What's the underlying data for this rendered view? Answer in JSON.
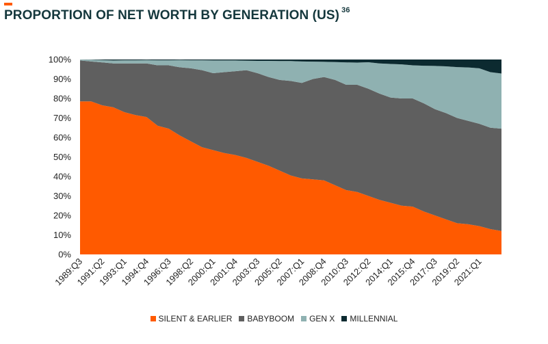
{
  "title": "PROPORTION OF NET WORTH BY GENERATION (US)",
  "footnote": "36",
  "colors": {
    "accent": "#ff5a00",
    "title": "#14373c"
  },
  "chart_data": {
    "type": "area",
    "stacked": true,
    "title": "PROPORTION OF NET WORTH BY GENERATION (US)",
    "xlabel": "",
    "ylabel": "",
    "ylim": [
      0,
      100
    ],
    "y_ticks": [
      0,
      10,
      20,
      30,
      40,
      50,
      60,
      70,
      80,
      90,
      100
    ],
    "y_tick_labels": [
      "0%",
      "10%",
      "20%",
      "30%",
      "40%",
      "50%",
      "60%",
      "70%",
      "80%",
      "90%",
      "100%"
    ],
    "x_tick_labels": [
      "1989:Q3",
      "1991:Q2",
      "1993:Q1",
      "1994:Q4",
      "1996:Q3",
      "1998:Q2",
      "2000:Q1",
      "2001:Q4",
      "2003:Q3",
      "2005:Q2",
      "2007:Q1",
      "2008:Q4",
      "2010:Q3",
      "2012:Q2",
      "2014:Q1",
      "2015:Q4",
      "2017:Q3",
      "2019:Q2",
      "2021:Q1"
    ],
    "legend_position": "bottom",
    "grid": false,
    "x": [
      "1989:Q3",
      "1990:Q3",
      "1991:Q2",
      "1992:Q2",
      "1993:Q1",
      "1994:Q1",
      "1994:Q4",
      "1995:Q4",
      "1996:Q3",
      "1997:Q3",
      "1998:Q2",
      "1999:Q2",
      "2000:Q1",
      "2001:Q1",
      "2001:Q4",
      "2002:Q4",
      "2003:Q3",
      "2004:Q3",
      "2005:Q2",
      "2006:Q2",
      "2007:Q1",
      "2008:Q1",
      "2008:Q4",
      "2009:Q4",
      "2010:Q3",
      "2011:Q3",
      "2012:Q2",
      "2013:Q2",
      "2014:Q1",
      "2015:Q1",
      "2015:Q4",
      "2016:Q4",
      "2017:Q3",
      "2018:Q3",
      "2019:Q2",
      "2020:Q2",
      "2021:Q1",
      "2022:Q1",
      "2022:Q3"
    ],
    "series": [
      {
        "name": "SILENT & EARLIER",
        "color": "#ff5a00",
        "values": [
          78.5,
          78.5,
          76.5,
          75.5,
          73,
          71.5,
          70.5,
          66,
          64.5,
          61,
          58,
          55,
          53.5,
          52,
          51,
          49.5,
          47.5,
          45.5,
          43,
          40.5,
          39,
          38.5,
          38,
          35.5,
          33,
          32,
          30,
          28,
          26.5,
          25,
          24.5,
          22,
          20,
          18,
          16,
          15.5,
          14.5,
          13,
          12
        ]
      },
      {
        "name": "BABYBOOM",
        "color": "#5f5f5f",
        "values": [
          21,
          20.5,
          22,
          22.5,
          25,
          26.5,
          27.5,
          31,
          32.5,
          35,
          37.5,
          39.5,
          39.5,
          41.5,
          43,
          45,
          45.5,
          45.5,
          46.5,
          48.5,
          49,
          51.5,
          53,
          54,
          54,
          55,
          55,
          54.5,
          54,
          55,
          55.5,
          55.5,
          54.5,
          54.5,
          54,
          53,
          52.5,
          52,
          52.5
        ]
      },
      {
        "name": "GEN X",
        "color": "#8fb1b1",
        "values": [
          0.5,
          0.9,
          1.2,
          1.5,
          1.6,
          1.6,
          1.7,
          2.6,
          2.6,
          3.7,
          4.1,
          5.1,
          6.5,
          6.0,
          5.5,
          4.9,
          6.3,
          8.3,
          9.7,
          10.2,
          11.0,
          8.9,
          7.8,
          9.2,
          11.5,
          11.4,
          13.6,
          15.5,
          17.2,
          17.5,
          17.0,
          19.3,
          22.2,
          24.0,
          26.1,
          27.4,
          28.5,
          28.5,
          28.3
        ]
      },
      {
        "name": "MILLENNIAL",
        "color": "#0c2a30",
        "values": [
          0,
          0.1,
          0.3,
          0.5,
          0.4,
          0.4,
          0.3,
          0.4,
          0.4,
          0.3,
          0.4,
          0.4,
          0.5,
          0.5,
          0.5,
          0.6,
          0.7,
          0.7,
          0.8,
          0.8,
          1.0,
          1.1,
          1.2,
          1.3,
          1.5,
          1.6,
          1.4,
          2.0,
          2.3,
          2.5,
          3.0,
          3.2,
          3.3,
          3.5,
          3.9,
          4.1,
          4.5,
          6.5,
          7.2
        ]
      }
    ]
  }
}
